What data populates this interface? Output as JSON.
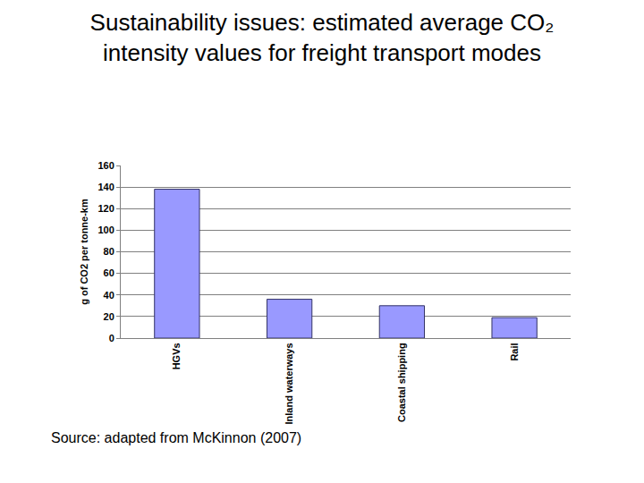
{
  "chart_data": {
    "type": "bar",
    "title": [
      "Sustainability issues: estimated average CO₂",
      "intensity values for freight transport modes"
    ],
    "y_label": "g of CO2 per tonne-km",
    "categories": [
      "HGVs",
      "Inland waterways",
      "Coastal shipping",
      "Rail"
    ],
    "values": [
      138,
      36,
      30,
      19
    ],
    "color": "#9999ff",
    "ylim": [
      0,
      160
    ],
    "yticks": [
      0,
      20,
      40,
      60,
      80,
      100,
      120,
      140,
      160
    ],
    "grid": true,
    "annotations": [
      "Source: adapted from McKinnon (2007)"
    ]
  }
}
